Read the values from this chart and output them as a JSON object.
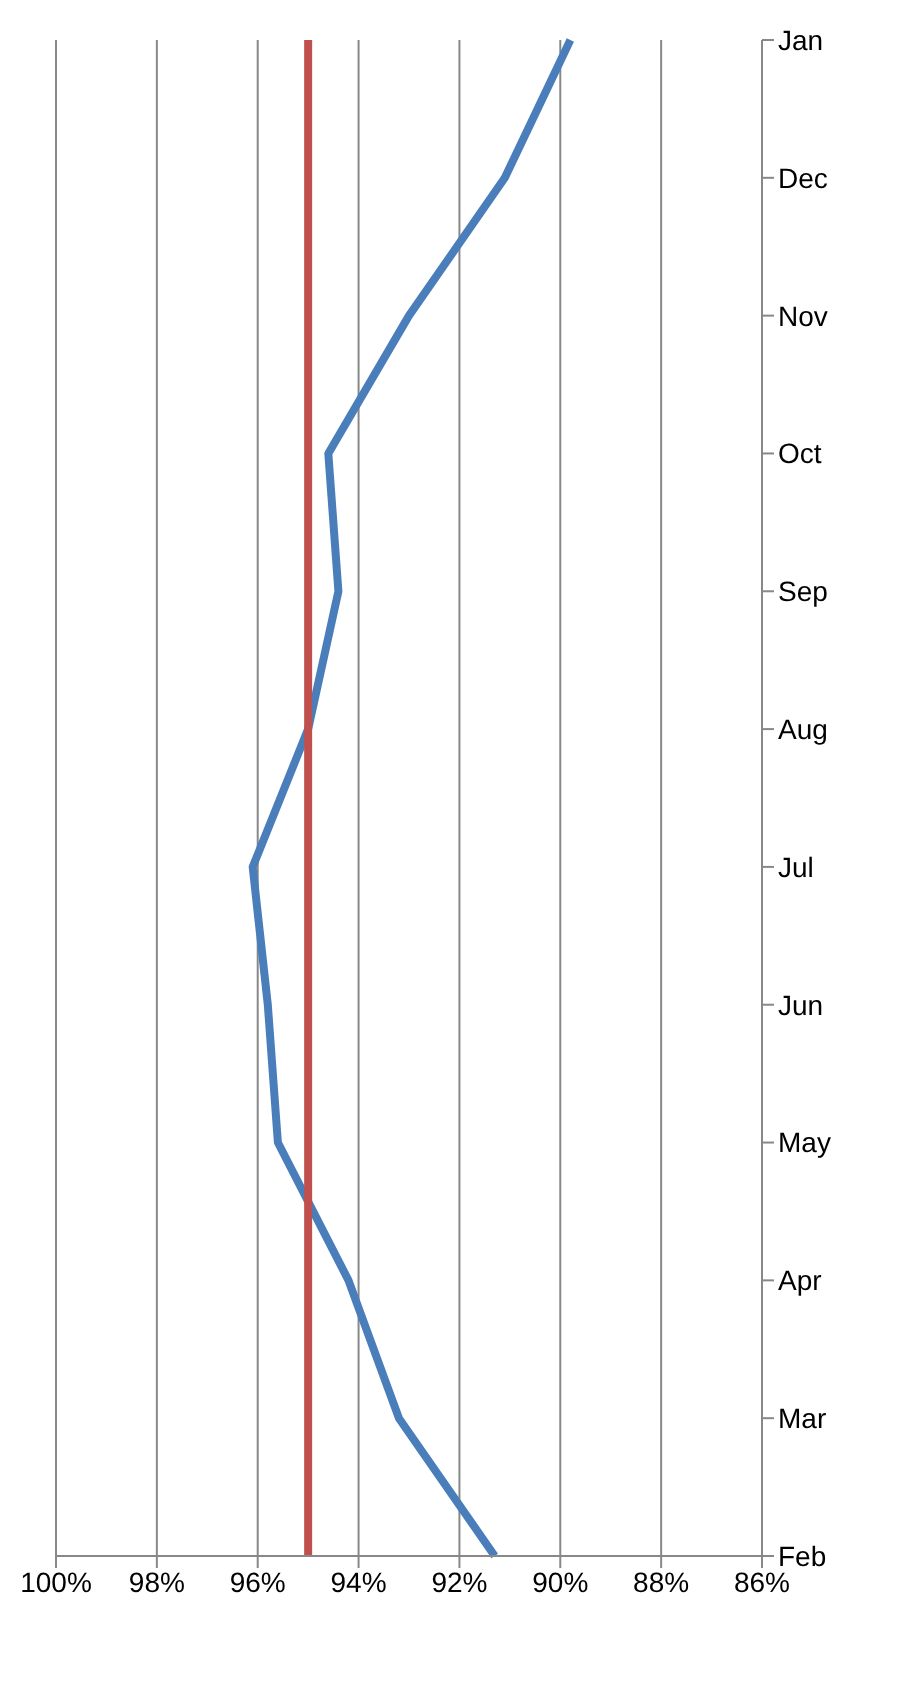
{
  "chart_data": {
    "type": "line",
    "orientation": "horizontal",
    "categories": [
      "Jan",
      "Dec",
      "Nov",
      "Oct",
      "Sep",
      "Aug",
      "Jul",
      "Jun",
      "May",
      "Apr",
      "Mar",
      "Feb"
    ],
    "series": [
      {
        "color": "#4a7ebb",
        "values": [
          89.8,
          91.1,
          93.0,
          94.6,
          94.4,
          95.0,
          96.1,
          95.8,
          95.6,
          94.2,
          93.2,
          91.3
        ]
      },
      {
        "color": "#c0504d",
        "values": [
          95,
          95,
          95,
          95,
          95,
          95,
          95,
          95,
          95,
          95,
          95,
          95
        ]
      }
    ],
    "xlim": [
      100,
      86
    ],
    "xticks": [
      {
        "value": 100,
        "label": "100%"
      },
      {
        "value": 98,
        "label": "98%"
      },
      {
        "value": 96,
        "label": "96%"
      },
      {
        "value": 94,
        "label": "94%"
      },
      {
        "value": 92,
        "label": "92%"
      },
      {
        "value": 90,
        "label": "90%"
      },
      {
        "value": 88,
        "label": "88%"
      },
      {
        "value": 86,
        "label": "86%"
      }
    ],
    "grid": "x",
    "legend": false,
    "marker": "none",
    "line_style": "solid"
  }
}
